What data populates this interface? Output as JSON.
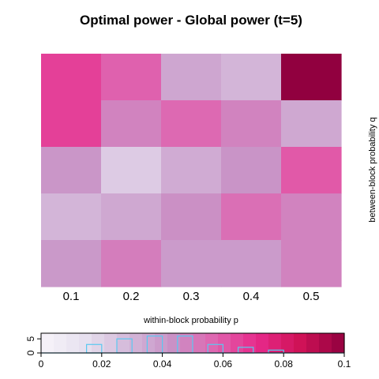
{
  "chart_data": [
    {
      "type": "heatmap",
      "title": "Optimal power - Global power (t=5)",
      "xlabel": "within-block probability p",
      "ylabel": "between-block probability q",
      "x_ticks": [
        "0.1",
        "0.2",
        "0.3",
        "0.4",
        "0.5"
      ],
      "rows_top_to_bottom": [
        [
          0.066,
          0.058,
          0.036,
          0.03,
          0.1
        ],
        [
          0.066,
          0.048,
          0.056,
          0.048,
          0.035
        ],
        [
          0.042,
          0.022,
          0.034,
          0.043,
          0.06
        ],
        [
          0.03,
          0.035,
          0.044,
          0.054,
          0.048
        ],
        [
          0.041,
          0.05,
          0.04,
          0.04,
          0.048
        ]
      ]
    },
    {
      "type": "bar",
      "legend_ticks": [
        "0",
        "0.02",
        "0.04",
        "0.06",
        "0.08",
        "0.1"
      ],
      "count_ticks": [
        "0",
        "5"
      ],
      "xlim": [
        0,
        0.1
      ],
      "ylim": [
        0,
        7
      ],
      "histogram_bins": [
        {
          "from": 0.015,
          "to": 0.02,
          "count": 3
        },
        {
          "from": 0.025,
          "to": 0.03,
          "count": 5
        },
        {
          "from": 0.035,
          "to": 0.04,
          "count": 6
        },
        {
          "from": 0.045,
          "to": 0.05,
          "count": 6
        },
        {
          "from": 0.055,
          "to": 0.06,
          "count": 3
        },
        {
          "from": 0.065,
          "to": 0.07,
          "count": 2
        },
        {
          "from": 0.075,
          "to": 0.08,
          "count": 1
        }
      ],
      "palette": [
        "#f7f4f9",
        "#e7e1ef",
        "#d4b9da",
        "#c994c7",
        "#df65b0",
        "#e7298a",
        "#ce1256",
        "#91003f"
      ],
      "histogram_color": "#5bc8f0"
    }
  ]
}
